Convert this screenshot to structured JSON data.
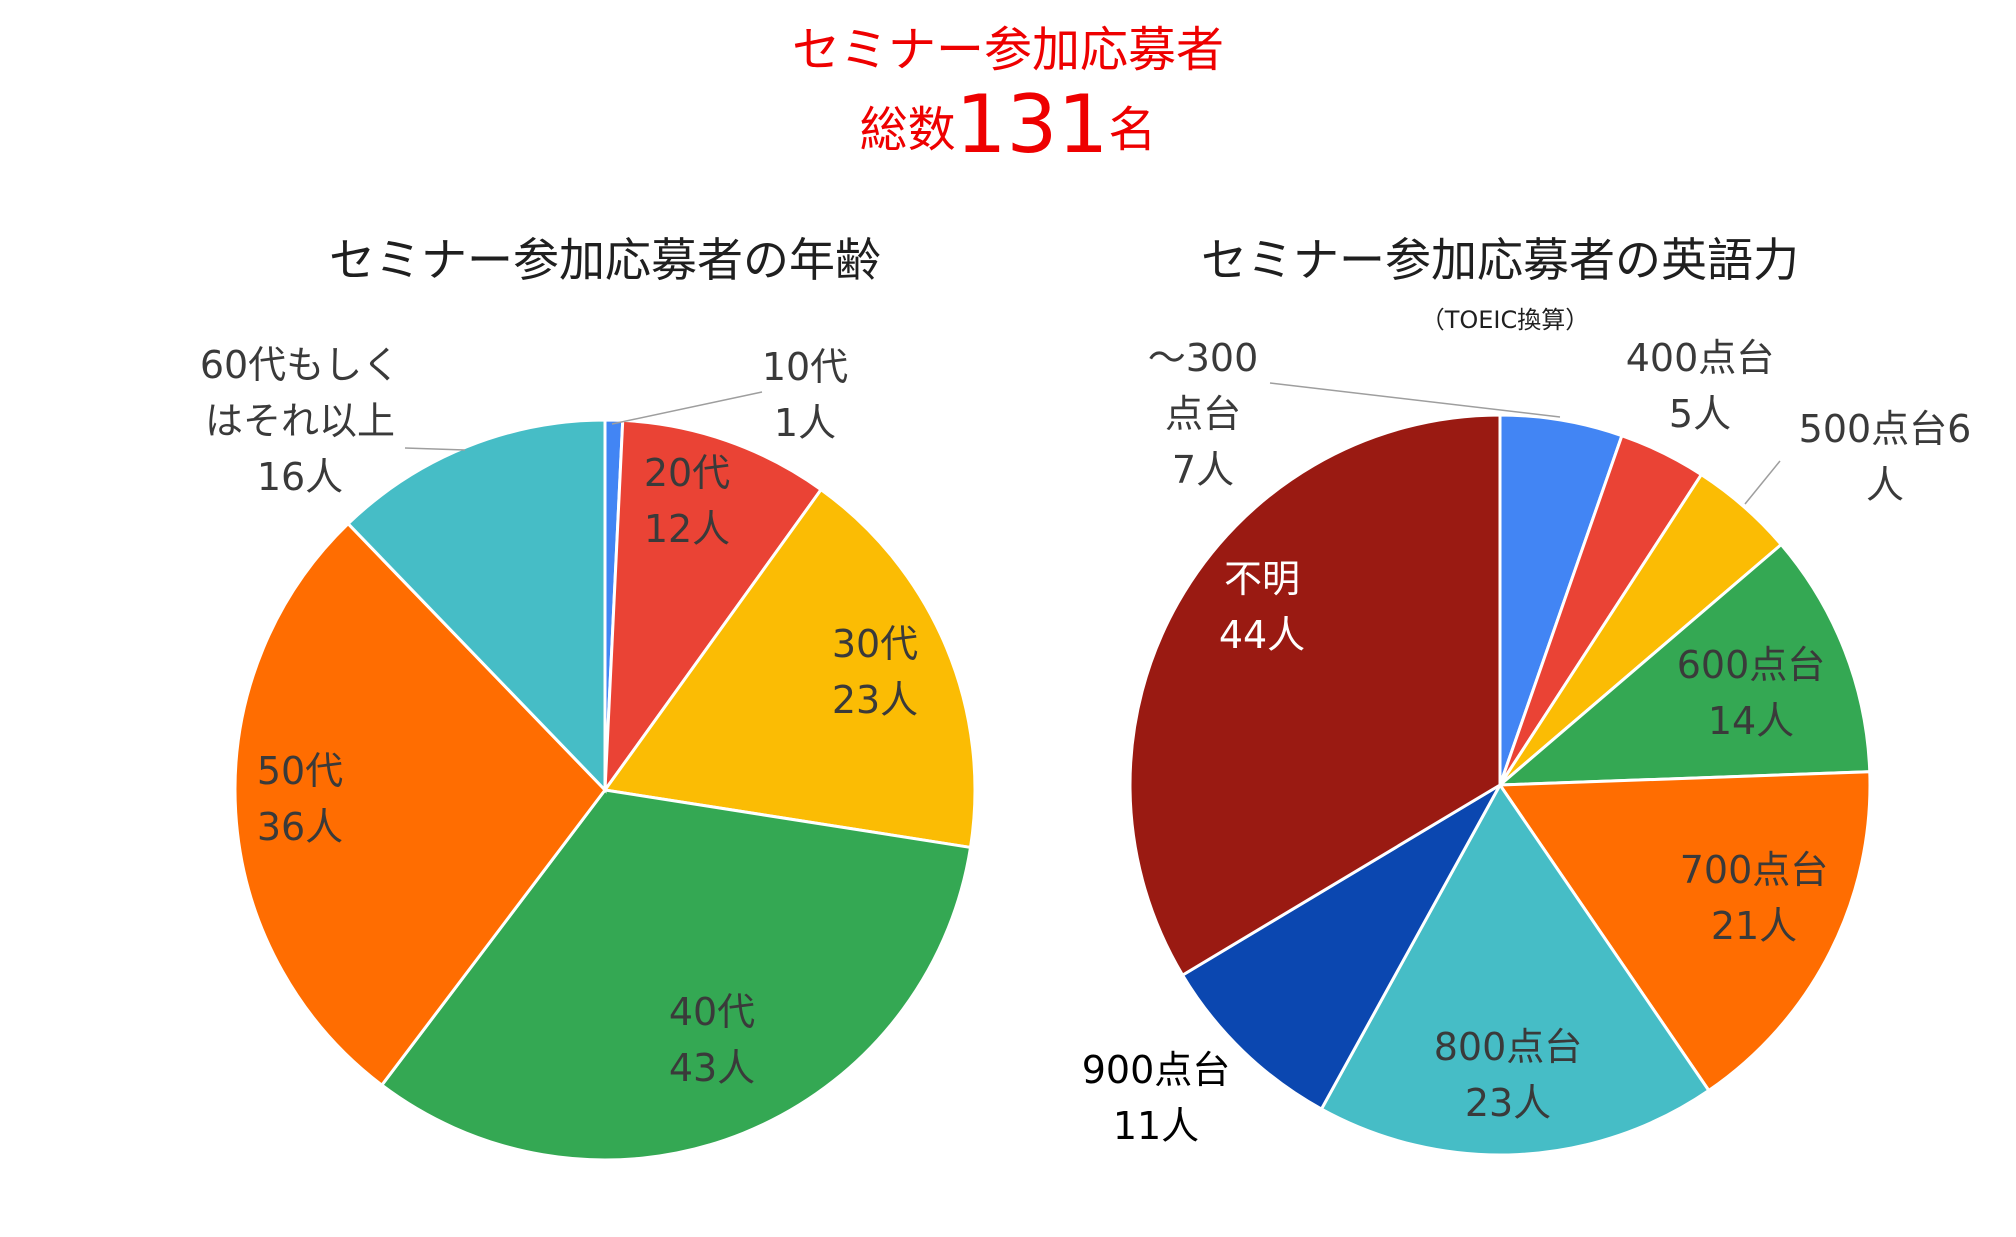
{
  "header": {
    "title_line1": "セミナー参加応募者",
    "total_prefix": "総数",
    "total_number": "131",
    "total_suffix": "名"
  },
  "chart_data": [
    {
      "type": "pie",
      "title": "セミナー参加応募者の年齢",
      "subtitle": "",
      "unit": "人",
      "slices": [
        {
          "label": "10代",
          "value": 1,
          "color": "#4285f4",
          "text_color": "#3a3a3a"
        },
        {
          "label": "20代",
          "value": 12,
          "color": "#ea4335",
          "text_color": "#3a3a3a"
        },
        {
          "label": "30代",
          "value": 23,
          "color": "#fbbc04",
          "text_color": "#3a3a3a"
        },
        {
          "label": "40代",
          "value": 43,
          "color": "#34a853",
          "text_color": "#3a3a3a"
        },
        {
          "label": "50代",
          "value": 36,
          "color": "#ff6d01",
          "text_color": "#3a3a3a"
        },
        {
          "label": "60代もしくはそれ以上",
          "value": 16,
          "color": "#46bdc6",
          "text_color": "#3a3a3a"
        }
      ],
      "label_lines": [
        [
          "10代",
          "1人"
        ],
        [
          "20代",
          "12人"
        ],
        [
          "30代",
          "23人"
        ],
        [
          "40代",
          "43人"
        ],
        [
          "50代",
          "36人"
        ],
        [
          "60代もしく",
          "はそれ以上",
          "16人"
        ]
      ]
    },
    {
      "type": "pie",
      "title": "セミナー参加応募者の英語力",
      "subtitle": "（TOEIC換算）",
      "unit": "人",
      "slices": [
        {
          "label": "〜300点台",
          "value": 7,
          "color": "#4285f4",
          "text_color": "#3a3a3a"
        },
        {
          "label": "400点台",
          "value": 5,
          "color": "#ea4335",
          "text_color": "#3a3a3a"
        },
        {
          "label": "500点台",
          "value": 6,
          "color": "#fbbc04",
          "text_color": "#3a3a3a"
        },
        {
          "label": "600点台",
          "value": 14,
          "color": "#34a853",
          "text_color": "#3a3a3a"
        },
        {
          "label": "700点台",
          "value": 21,
          "color": "#ff6d01",
          "text_color": "#3a3a3a"
        },
        {
          "label": "800点台",
          "value": 23,
          "color": "#46bdc6",
          "text_color": "#3a3a3a"
        },
        {
          "label": "900点台",
          "value": 11,
          "color": "#0b47b0",
          "text_color": "#000000"
        },
        {
          "label": "不明",
          "value": 44,
          "color": "#9a1a12",
          "text_color": "#ffffff"
        }
      ],
      "label_lines": [
        [
          "〜300",
          "点台",
          "7人"
        ],
        [
          "400点台",
          "5人"
        ],
        [
          "500点台6",
          "人"
        ],
        [
          "600点台",
          "14人"
        ],
        [
          "700点台",
          "21人"
        ],
        [
          "800点台",
          "23人"
        ],
        [
          "900点台",
          "11人"
        ],
        [
          "不明",
          "44人"
        ]
      ]
    }
  ]
}
